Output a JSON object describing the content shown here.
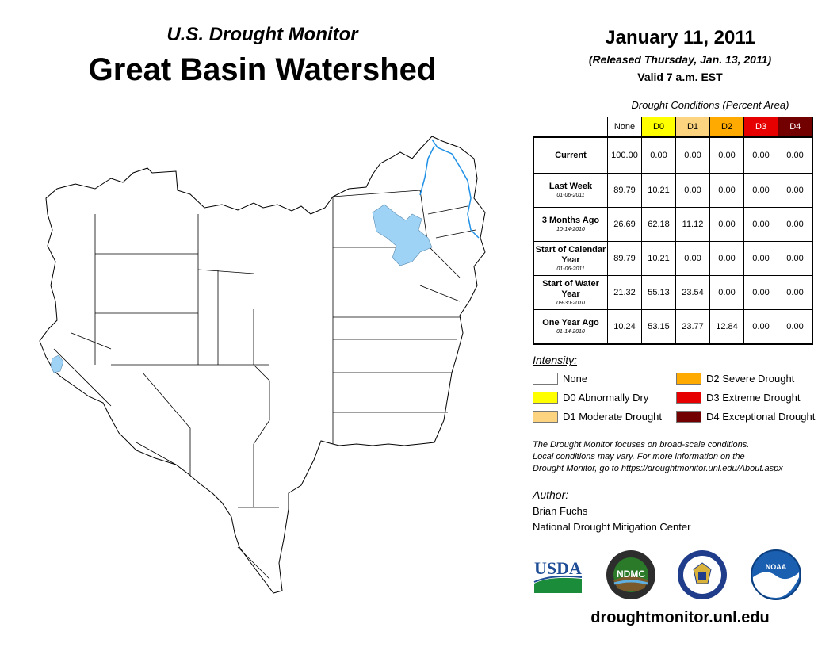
{
  "header": {
    "subtitle": "U.S. Drought Monitor",
    "title": "Great Basin Watershed",
    "date": "January 11, 2011",
    "released": "(Released Thursday, Jan. 13, 2011)",
    "valid": "Valid 7 a.m. EST"
  },
  "table": {
    "caption": "Drought Conditions (Percent Area)",
    "columns": [
      {
        "label": "None",
        "color": "#ffffff"
      },
      {
        "label": "D0",
        "color": "#ffff00"
      },
      {
        "label": "D1",
        "color": "#fcd37f"
      },
      {
        "label": "D2",
        "color": "#ffaa00"
      },
      {
        "label": "D3",
        "color": "#e60000",
        "text_color": "#ffffff"
      },
      {
        "label": "D4",
        "color": "#730000",
        "text_color": "#ffffff"
      }
    ],
    "rows": [
      {
        "label": "Current",
        "date": "",
        "values": [
          "100.00",
          "0.00",
          "0.00",
          "0.00",
          "0.00",
          "0.00"
        ]
      },
      {
        "label": "Last Week",
        "date": "01-06-2011",
        "values": [
          "89.79",
          "10.21",
          "0.00",
          "0.00",
          "0.00",
          "0.00"
        ]
      },
      {
        "label": "3 Months Ago",
        "date": "10-14-2010",
        "values": [
          "26.69",
          "62.18",
          "11.12",
          "0.00",
          "0.00",
          "0.00"
        ]
      },
      {
        "label": "Start of Calendar Year",
        "date": "01-06-2011",
        "values": [
          "89.79",
          "10.21",
          "0.00",
          "0.00",
          "0.00",
          "0.00"
        ]
      },
      {
        "label": "Start of Water Year",
        "date": "09-30-2010",
        "values": [
          "21.32",
          "55.13",
          "23.54",
          "0.00",
          "0.00",
          "0.00"
        ]
      },
      {
        "label": "One Year Ago",
        "date": "01-14-2010",
        "values": [
          "10.24",
          "53.15",
          "23.77",
          "12.84",
          "0.00",
          "0.00"
        ]
      }
    ]
  },
  "legend": {
    "title": "Intensity:",
    "items": [
      {
        "label": "None",
        "color": "#ffffff"
      },
      {
        "label": "D0 Abnormally Dry",
        "color": "#ffff00"
      },
      {
        "label": "D1 Moderate Drought",
        "color": "#fcd37f"
      },
      {
        "label": "D2 Severe Drought",
        "color": "#ffaa00"
      },
      {
        "label": "D3 Extreme Drought",
        "color": "#e60000"
      },
      {
        "label": "D4 Exceptional Drought",
        "color": "#730000"
      }
    ]
  },
  "disclaimer": [
    "The Drought Monitor focuses on broad-scale conditions.",
    "Local conditions may vary. For more information on the",
    "Drought Monitor, go to https://droughtmonitor.unl.edu/About.aspx"
  ],
  "author": {
    "title": "Author:",
    "name": "Brian Fuchs",
    "org": "National Drought Mitigation Center"
  },
  "logos": {
    "usda": "USDA",
    "ndmc": "NDMC",
    "noaa": "NOAA"
  },
  "footer_url": "droughtmonitor.unl.edu",
  "map": {
    "water_color": "#9fd3f5",
    "river_color": "#1e90e6",
    "outline_color": "#000000"
  }
}
